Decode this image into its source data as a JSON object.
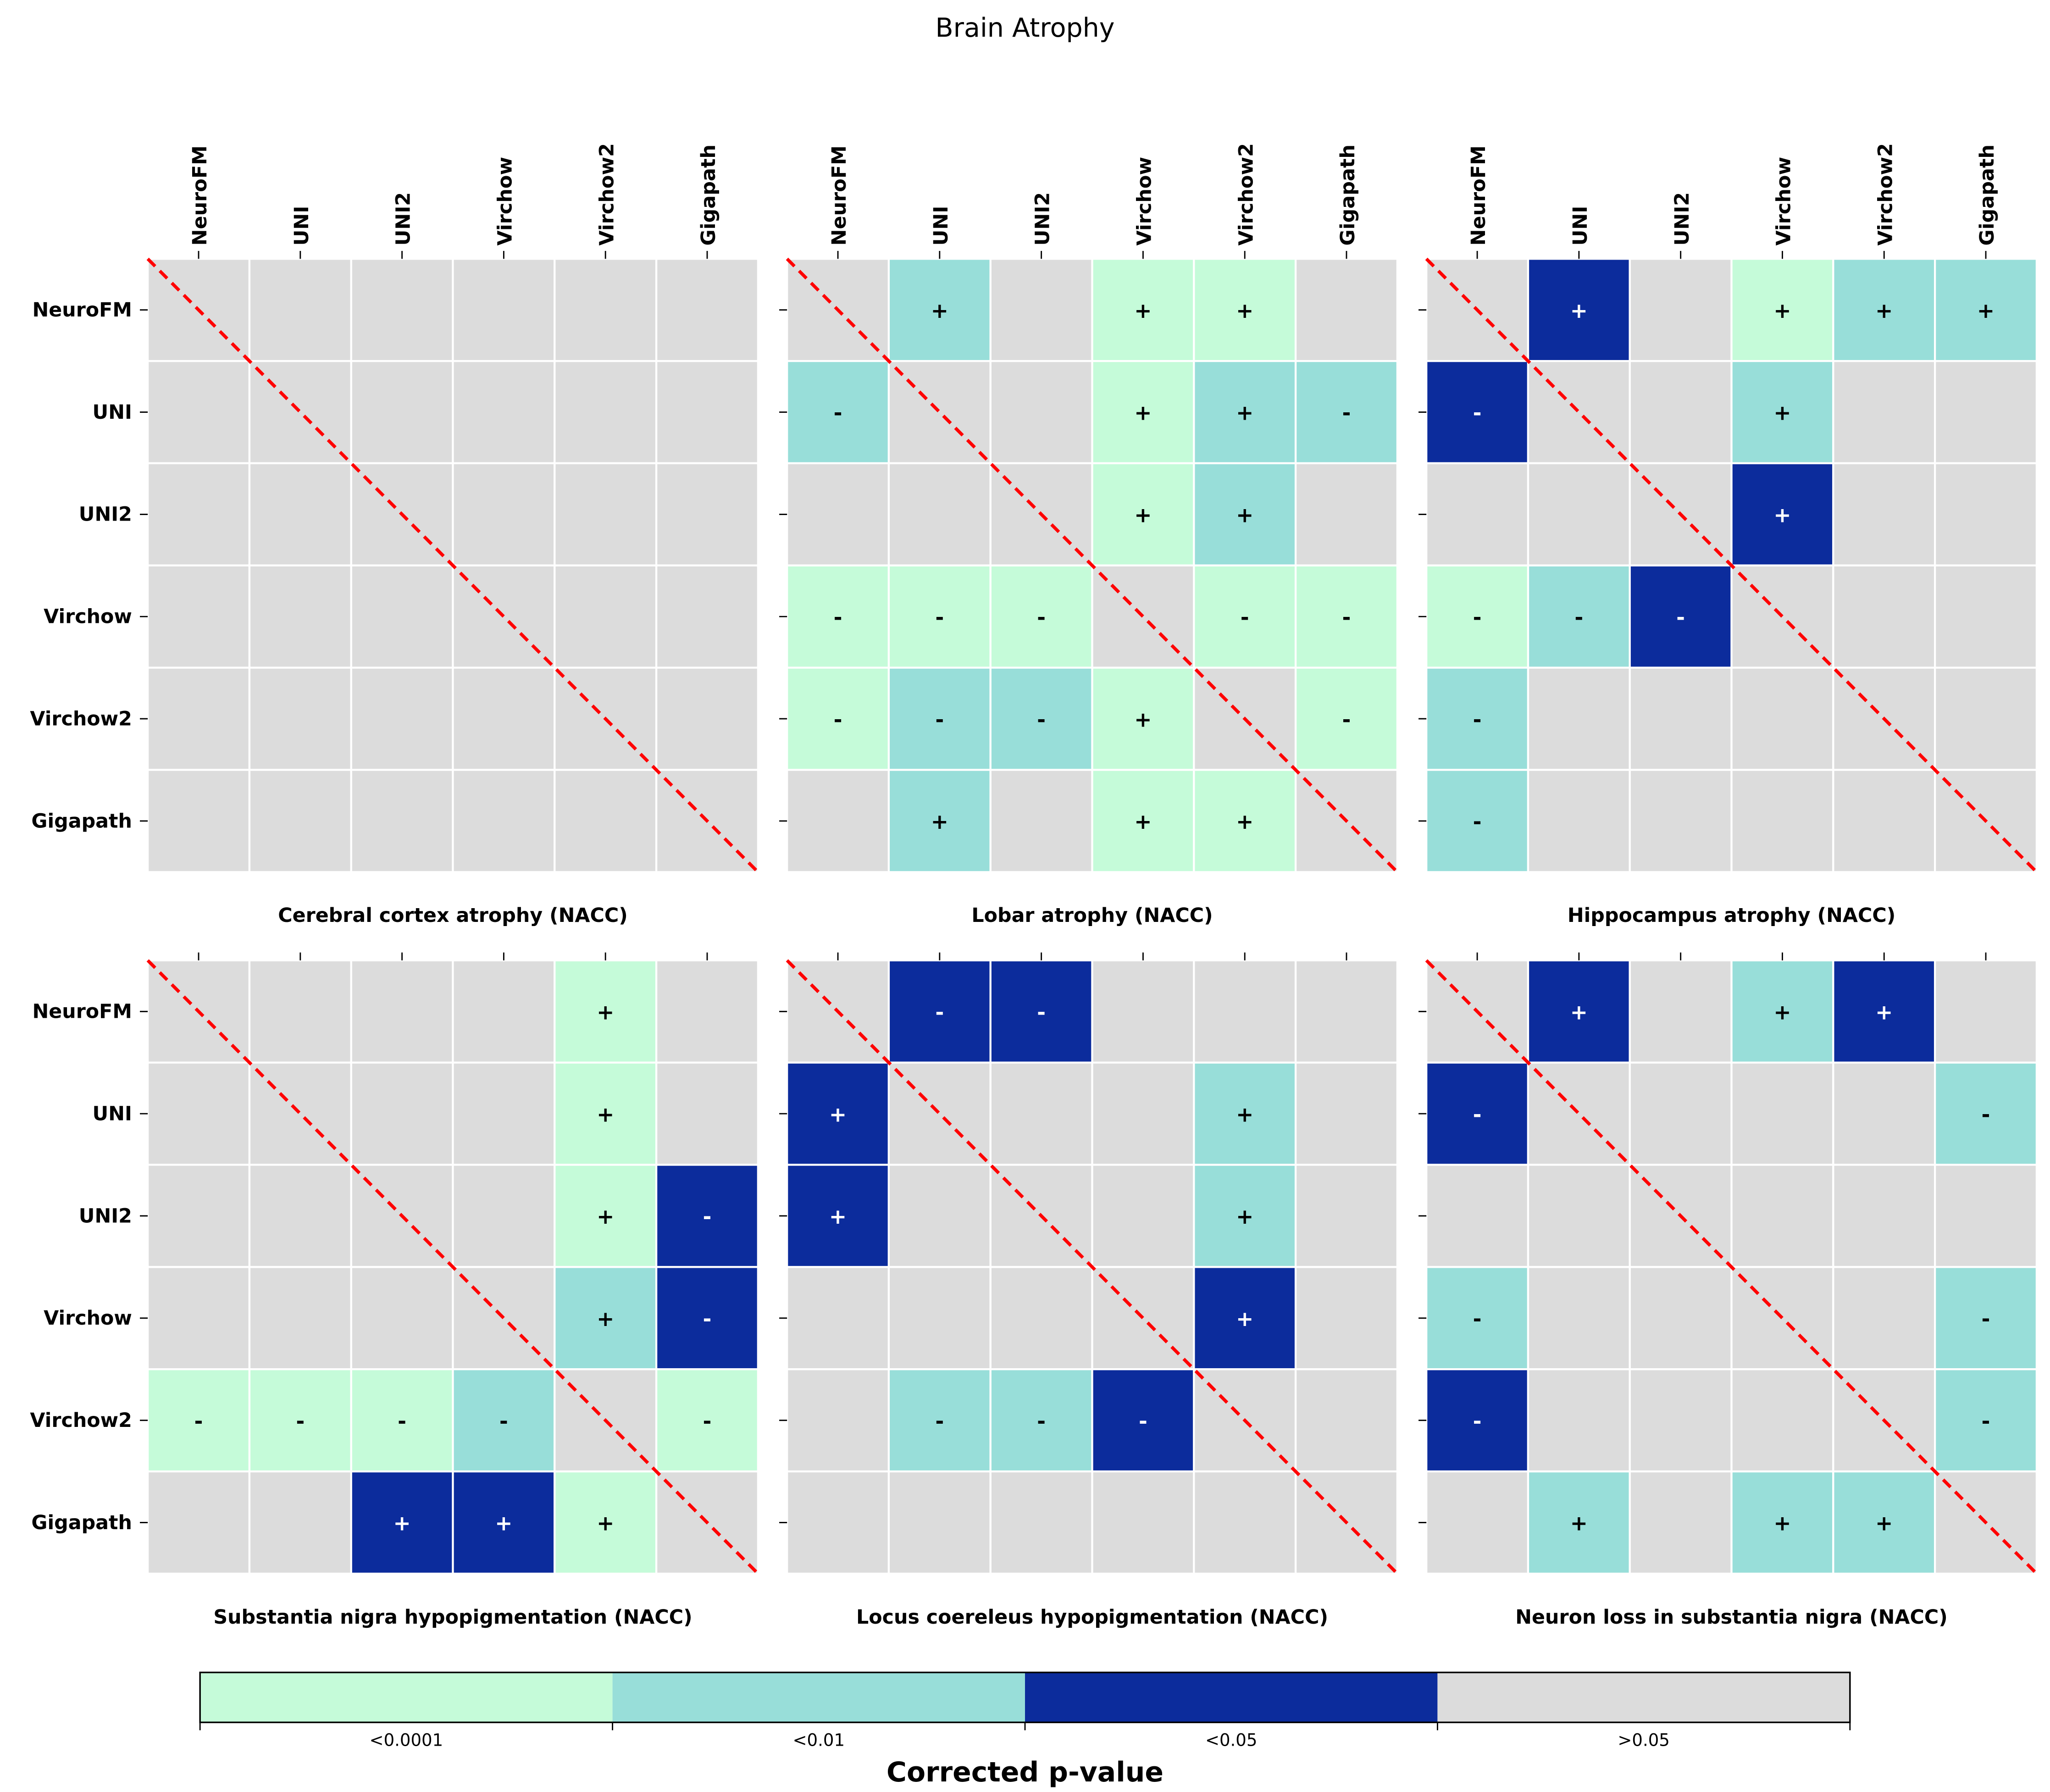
{
  "chart_data": [
    {
      "type": "heatmap",
      "figure_title": "Brain Atrophy",
      "legend": {
        "title": "Corrected p-value",
        "placement": "bottom",
        "categories": [
          {
            "label": "<0.0001",
            "color": "#c5fbd9"
          },
          {
            "label": "<0.01",
            "color": "#98ded9"
          },
          {
            "label": "<0.05",
            "color": "#0c2c9c"
          },
          {
            "label": ">0.05",
            "color": "#dcdcdc"
          }
        ]
      },
      "models": [
        "NeuroFM",
        "UNI",
        "UNI2",
        "Virchow",
        "Virchow2",
        "Gigapath"
      ],
      "panels": [
        {
          "title": "Cerebral cortex atrophy (NACC)",
          "levels": [
            [
              3,
              3,
              3,
              3,
              3,
              3
            ],
            [
              3,
              3,
              3,
              3,
              3,
              3
            ],
            [
              3,
              3,
              3,
              3,
              3,
              3
            ],
            [
              3,
              3,
              3,
              3,
              3,
              3
            ],
            [
              3,
              3,
              3,
              3,
              3,
              3
            ],
            [
              3,
              3,
              3,
              3,
              3,
              3
            ]
          ],
          "signs": [
            [
              "",
              "",
              "",
              "",
              "",
              ""
            ],
            [
              "",
              "",
              "",
              "",
              "",
              ""
            ],
            [
              "",
              "",
              "",
              "",
              "",
              ""
            ],
            [
              "",
              "",
              "",
              "",
              "",
              ""
            ],
            [
              "",
              "",
              "",
              "",
              "",
              ""
            ],
            [
              "",
              "",
              "",
              "",
              "",
              ""
            ]
          ]
        },
        {
          "title": "Lobar atrophy (NACC)",
          "levels": [
            [
              3,
              1,
              3,
              0,
              0,
              3
            ],
            [
              1,
              3,
              3,
              0,
              1,
              1
            ],
            [
              3,
              3,
              3,
              0,
              1,
              3
            ],
            [
              0,
              0,
              0,
              3,
              0,
              0
            ],
            [
              0,
              1,
              1,
              0,
              3,
              0
            ],
            [
              3,
              1,
              3,
              0,
              0,
              3
            ]
          ],
          "signs": [
            [
              "",
              "+",
              "",
              "+",
              "+",
              ""
            ],
            [
              "-",
              "",
              "",
              "+",
              "+",
              "-"
            ],
            [
              "",
              "",
              "",
              "+",
              "+",
              ""
            ],
            [
              "-",
              "-",
              "-",
              "",
              "-",
              "-"
            ],
            [
              "-",
              "-",
              "-",
              "+",
              "",
              "-"
            ],
            [
              "",
              "+",
              "",
              "+",
              "+",
              ""
            ]
          ]
        },
        {
          "title": "Hippocampus atrophy (NACC)",
          "levels": [
            [
              3,
              2,
              3,
              0,
              1,
              1
            ],
            [
              2,
              3,
              3,
              1,
              3,
              3
            ],
            [
              3,
              3,
              3,
              2,
              3,
              3
            ],
            [
              0,
              1,
              2,
              3,
              3,
              3
            ],
            [
              1,
              3,
              3,
              3,
              3,
              3
            ],
            [
              1,
              3,
              3,
              3,
              3,
              3
            ]
          ],
          "signs": [
            [
              "",
              "+",
              "",
              "+",
              "+",
              "+"
            ],
            [
              "-",
              "",
              "",
              "+",
              "",
              ""
            ],
            [
              "",
              "",
              "",
              "+",
              "",
              ""
            ],
            [
              "-",
              "-",
              "-",
              "",
              "",
              ""
            ],
            [
              "-",
              "",
              "",
              "",
              "",
              ""
            ],
            [
              "-",
              "",
              "",
              "",
              "",
              ""
            ]
          ]
        },
        {
          "title": "Substantia nigra hypopigmentation (NACC)",
          "levels": [
            [
              3,
              3,
              3,
              3,
              0,
              3
            ],
            [
              3,
              3,
              3,
              3,
              0,
              3
            ],
            [
              3,
              3,
              3,
              3,
              0,
              2
            ],
            [
              3,
              3,
              3,
              3,
              1,
              2
            ],
            [
              0,
              0,
              0,
              1,
              3,
              0
            ],
            [
              3,
              3,
              2,
              2,
              0,
              3
            ]
          ],
          "signs": [
            [
              "",
              "",
              "",
              "",
              "+",
              ""
            ],
            [
              "",
              "",
              "",
              "",
              "+",
              ""
            ],
            [
              "",
              "",
              "",
              "",
              "+",
              "-"
            ],
            [
              "",
              "",
              "",
              "",
              "+",
              "-"
            ],
            [
              "-",
              "-",
              "-",
              "-",
              "",
              "-"
            ],
            [
              "",
              "",
              "+",
              "+",
              "+",
              ""
            ]
          ]
        },
        {
          "title": "Locus coereleus hypopigmentation (NACC)",
          "levels": [
            [
              3,
              2,
              2,
              3,
              3,
              3
            ],
            [
              2,
              3,
              3,
              3,
              1,
              3
            ],
            [
              2,
              3,
              3,
              3,
              1,
              3
            ],
            [
              3,
              3,
              3,
              3,
              2,
              3
            ],
            [
              3,
              1,
              1,
              2,
              3,
              3
            ],
            [
              3,
              3,
              3,
              3,
              3,
              3
            ]
          ],
          "signs": [
            [
              "",
              "-",
              "-",
              "",
              "",
              ""
            ],
            [
              "+",
              "",
              "",
              "",
              "+",
              ""
            ],
            [
              "+",
              "",
              "",
              "",
              "+",
              ""
            ],
            [
              "",
              "",
              "",
              "",
              "+",
              ""
            ],
            [
              "",
              "-",
              "-",
              "-",
              "",
              ""
            ],
            [
              "",
              "",
              "",
              "",
              "",
              ""
            ]
          ]
        },
        {
          "title": "Neuron loss in substantia nigra (NACC)",
          "levels": [
            [
              3,
              2,
              3,
              1,
              2,
              3
            ],
            [
              2,
              3,
              3,
              3,
              3,
              1
            ],
            [
              3,
              3,
              3,
              3,
              3,
              3
            ],
            [
              1,
              3,
              3,
              3,
              3,
              1
            ],
            [
              2,
              3,
              3,
              3,
              3,
              1
            ],
            [
              3,
              1,
              3,
              1,
              1,
              3
            ]
          ],
          "signs": [
            [
              "",
              "+",
              "",
              "+",
              "+",
              ""
            ],
            [
              "-",
              "",
              "",
              "",
              "",
              "-"
            ],
            [
              "",
              "",
              "",
              "",
              "",
              ""
            ],
            [
              "-",
              "",
              "",
              "",
              "",
              "-"
            ],
            [
              "-",
              "",
              "",
              "",
              "",
              "-"
            ],
            [
              "",
              "+",
              "",
              "+",
              "+",
              ""
            ]
          ]
        }
      ],
      "diagonal_line_color": "#ff0000"
    }
  ]
}
